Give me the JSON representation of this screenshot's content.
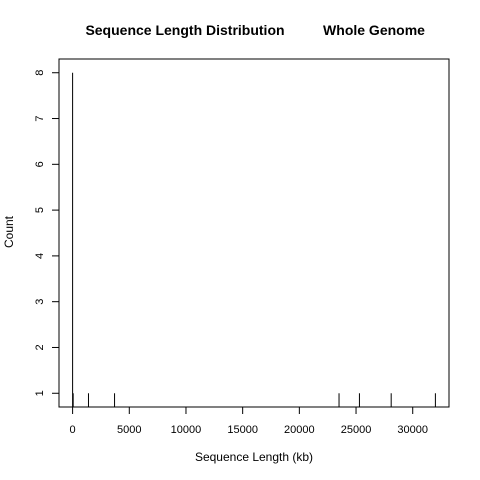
{
  "chart_data": {
    "type": "bar",
    "title": "Sequence Length Distribution",
    "subtitle": "Whole Genome",
    "xlabel": "Sequence Length (kb)",
    "ylabel": "Count",
    "xlim": [
      -1200,
      33200
    ],
    "ylim": [
      0.7,
      8.3
    ],
    "x_ticks": [
      0,
      5000,
      10000,
      15000,
      20000,
      25000,
      30000
    ],
    "y_ticks": [
      1,
      2,
      3,
      4,
      5,
      6,
      7,
      8
    ],
    "grid": false,
    "points": [
      {
        "x": 0,
        "count": 8
      },
      {
        "x": 50,
        "count": 1
      },
      {
        "x": 1400,
        "count": 1
      },
      {
        "x": 3700,
        "count": 1
      },
      {
        "x": 23500,
        "count": 1
      },
      {
        "x": 25300,
        "count": 1
      },
      {
        "x": 28100,
        "count": 1
      },
      {
        "x": 32000,
        "count": 1
      }
    ]
  }
}
